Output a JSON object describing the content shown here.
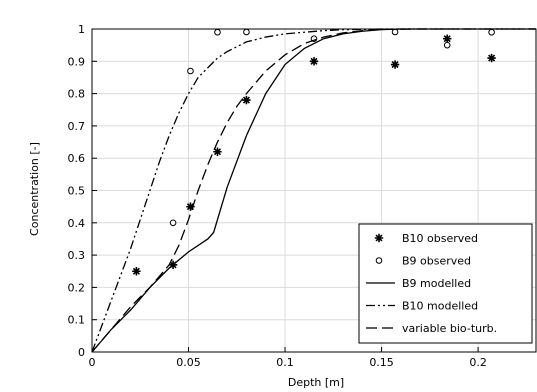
{
  "chart_data": {
    "type": "line",
    "xlabel": "Depth [m]",
    "ylabel": "Concentration [-]",
    "xlim": [
      0,
      0.23
    ],
    "ylim": [
      0,
      1.0
    ],
    "xticks": [
      0,
      0.05,
      0.1,
      0.15,
      0.2
    ],
    "xtick_labels": [
      "0",
      "0.05",
      "0.1",
      "0.15",
      "0.2"
    ],
    "yticks": [
      0,
      0.1,
      0.2,
      0.3,
      0.4,
      0.5,
      0.6,
      0.7,
      0.8,
      0.9,
      1.0
    ],
    "ytick_labels": [
      "0",
      "0.1",
      "0.2",
      "0.3",
      "0.4",
      "0.5",
      "0.6",
      "0.7",
      "0.8",
      "0.9",
      "1"
    ],
    "grid": true,
    "legend_position": "bottom-right",
    "series": [
      {
        "name": "B10 observed",
        "kind": "scatter",
        "marker": "asterisk",
        "x": [
          0.023,
          0.042,
          0.051,
          0.065,
          0.08,
          0.115,
          0.157,
          0.184,
          0.207
        ],
        "y": [
          0.25,
          0.27,
          0.45,
          0.62,
          0.78,
          0.9,
          0.89,
          0.97,
          0.91
        ]
      },
      {
        "name": "B9 observed",
        "kind": "scatter",
        "marker": "circle",
        "x": [
          0.042,
          0.051,
          0.065,
          0.08,
          0.115,
          0.157,
          0.184,
          0.207
        ],
        "y": [
          0.4,
          0.87,
          0.99,
          1.01,
          0.97,
          1.01,
          0.95,
          0.99
        ]
      },
      {
        "name": "B9 modelled",
        "kind": "line",
        "dash": "solid",
        "x": [
          0,
          0.01,
          0.02,
          0.03,
          0.04,
          0.05,
          0.06,
          0.063,
          0.07,
          0.08,
          0.09,
          0.1,
          0.11,
          0.12,
          0.13,
          0.14,
          0.15,
          0.16,
          0.17,
          0.2,
          0.23
        ],
        "y": [
          0,
          0.07,
          0.13,
          0.2,
          0.26,
          0.31,
          0.35,
          0.37,
          0.51,
          0.67,
          0.8,
          0.89,
          0.94,
          0.97,
          0.985,
          0.993,
          0.998,
          1.0,
          1.0,
          1.0,
          1.0
        ]
      },
      {
        "name": "B10 modelled",
        "kind": "line",
        "dash": "dash-dot-dot",
        "x": [
          0,
          0.005,
          0.01,
          0.015,
          0.02,
          0.025,
          0.03,
          0.035,
          0.04,
          0.045,
          0.05,
          0.055,
          0.06,
          0.065,
          0.07,
          0.08,
          0.09,
          0.1,
          0.11,
          0.12,
          0.13,
          0.14,
          0.15,
          0.16,
          0.17,
          0.2,
          0.23
        ],
        "y": [
          0,
          0.08,
          0.16,
          0.24,
          0.32,
          0.41,
          0.5,
          0.59,
          0.67,
          0.74,
          0.8,
          0.85,
          0.88,
          0.91,
          0.93,
          0.96,
          0.975,
          0.985,
          0.99,
          0.995,
          0.998,
          0.999,
          1.0,
          1.0,
          1.0,
          1.0,
          1.0
        ]
      },
      {
        "name": "variable bio-turb.",
        "kind": "line",
        "dash": "dash",
        "x": [
          0,
          0.01,
          0.02,
          0.03,
          0.04,
          0.045,
          0.05,
          0.055,
          0.06,
          0.065,
          0.07,
          0.075,
          0.08,
          0.09,
          0.1,
          0.11,
          0.12,
          0.13,
          0.14,
          0.15,
          0.17,
          0.2,
          0.23
        ],
        "y": [
          0,
          0.07,
          0.14,
          0.2,
          0.27,
          0.33,
          0.41,
          0.5,
          0.58,
          0.65,
          0.71,
          0.76,
          0.8,
          0.87,
          0.92,
          0.955,
          0.975,
          0.988,
          0.995,
          0.999,
          1.0,
          1.0,
          1.0
        ]
      }
    ]
  }
}
